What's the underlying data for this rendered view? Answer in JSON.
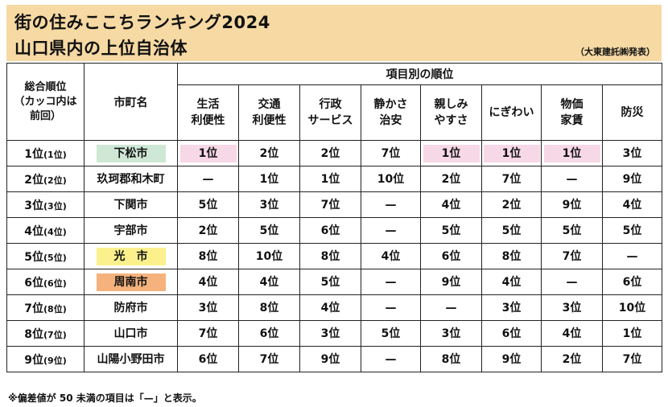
{
  "title": {
    "line1": "街の住みここちランキング2024",
    "line2": "山口県内の上位自治体",
    "source": "（大東建託㈱発表）"
  },
  "colors": {
    "title_bg": "#f6d9a3",
    "pink": "#f7d8e6",
    "green": "#cfe8d6",
    "yellow": "#fbf08c",
    "orange": "#f5b27c"
  },
  "headers": {
    "rank_line1": "総合順位",
    "rank_line2": "（カッコ内は",
    "rank_line3": "前回）",
    "name": "市町名",
    "group": "項目別の順位",
    "items": [
      {
        "l1": "生活",
        "l2": "利便性"
      },
      {
        "l1": "交通",
        "l2": "利便性"
      },
      {
        "l1": "行政",
        "l2": "サービス"
      },
      {
        "l1": "静かさ",
        "l2": "治安"
      },
      {
        "l1": "親しみ",
        "l2": "やすさ"
      },
      {
        "l1": "にぎわい",
        "l2": ""
      },
      {
        "l1": "物価",
        "l2": "家賃"
      },
      {
        "l1": "防災",
        "l2": ""
      }
    ]
  },
  "rows": [
    {
      "rank": "1位",
      "prev": "(1位)",
      "name": "下松市",
      "name_color": "green",
      "cells": [
        "1位",
        "2位",
        "2位",
        "7位",
        "1位",
        "1位",
        "1位",
        "3位"
      ],
      "highlight": [
        true,
        false,
        false,
        false,
        true,
        true,
        true,
        false
      ]
    },
    {
      "rank": "2位",
      "prev": "(2位)",
      "name": "玖珂郡和木町",
      "name_color": "",
      "cells": [
        "—",
        "1位",
        "1位",
        "10位",
        "2位",
        "7位",
        "—",
        "9位"
      ],
      "highlight": [
        false,
        false,
        false,
        false,
        false,
        false,
        false,
        false
      ]
    },
    {
      "rank": "3位",
      "prev": "(3位)",
      "name": "下関市",
      "name_color": "",
      "cells": [
        "5位",
        "3位",
        "7位",
        "—",
        "4位",
        "2位",
        "9位",
        "4位"
      ],
      "highlight": [
        false,
        false,
        false,
        false,
        false,
        false,
        false,
        false
      ]
    },
    {
      "rank": "4位",
      "prev": "(4位)",
      "name": "宇部市",
      "name_color": "",
      "cells": [
        "2位",
        "5位",
        "6位",
        "—",
        "5位",
        "5位",
        "5位",
        "5位"
      ],
      "highlight": [
        false,
        false,
        false,
        false,
        false,
        false,
        false,
        false
      ]
    },
    {
      "rank": "5位",
      "prev": "(5位)",
      "name": "光　市",
      "name_color": "yellow",
      "cells": [
        "8位",
        "10位",
        "8位",
        "4位",
        "6位",
        "8位",
        "7位",
        "—"
      ],
      "highlight": [
        false,
        false,
        false,
        false,
        false,
        false,
        false,
        false
      ]
    },
    {
      "rank": "6位",
      "prev": "(6位)",
      "name": "周南市",
      "name_color": "orange",
      "cells": [
        "4位",
        "4位",
        "5位",
        "—",
        "9位",
        "4位",
        "—",
        "6位"
      ],
      "highlight": [
        false,
        false,
        false,
        false,
        false,
        false,
        false,
        false
      ]
    },
    {
      "rank": "7位",
      "prev": "(8位)",
      "name": "防府市",
      "name_color": "",
      "cells": [
        "3位",
        "8位",
        "4位",
        "—",
        "—",
        "3位",
        "3位",
        "10位"
      ],
      "highlight": [
        false,
        false,
        false,
        false,
        false,
        false,
        false,
        false
      ]
    },
    {
      "rank": "8位",
      "prev": "(7位)",
      "name": "山口市",
      "name_color": "",
      "cells": [
        "7位",
        "6位",
        "3位",
        "5位",
        "3位",
        "6位",
        "4位",
        "1位"
      ],
      "highlight": [
        false,
        false,
        false,
        false,
        false,
        false,
        false,
        false
      ]
    },
    {
      "rank": "9位",
      "prev": "(9位)",
      "name": "山陽小野田市",
      "name_color": "",
      "cells": [
        "6位",
        "7位",
        "9位",
        "—",
        "8位",
        "9位",
        "2位",
        "7位"
      ],
      "highlight": [
        false,
        false,
        false,
        false,
        false,
        false,
        false,
        false
      ]
    }
  ],
  "footnote": "※偏差値が 50 未満の項目は「—」と表示。"
}
